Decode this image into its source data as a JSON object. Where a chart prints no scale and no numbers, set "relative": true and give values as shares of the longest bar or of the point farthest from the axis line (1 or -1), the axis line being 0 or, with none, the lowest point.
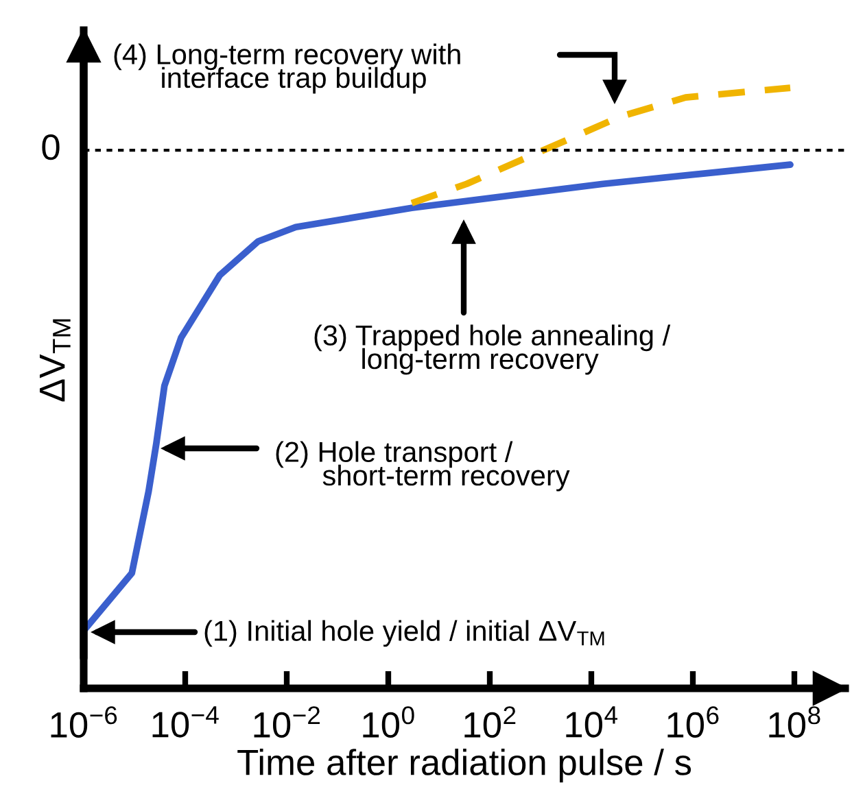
{
  "chart_data": {
    "type": "line",
    "relative": true,
    "log": "x",
    "xlabel": "Time after radiation pulse / s",
    "ylabel": "ΔV$_{TM}$",
    "xlim": [
      1e-06,
      1000000000.0
    ],
    "xticks": [
      {
        "value": 1e-06,
        "label": "10$^{−6}$"
      },
      {
        "value": 0.0001,
        "label": "10$^{−4}$"
      },
      {
        "value": 0.01,
        "label": "10$^{−2}$"
      },
      {
        "value": 1,
        "label": "10$^{0}$"
      },
      {
        "value": 100,
        "label": "10$^{2}$"
      },
      {
        "value": 10000.0,
        "label": "10$^{4}$"
      },
      {
        "value": 1000000.0,
        "label": "10$^{6}$"
      },
      {
        "value": 100000000.0,
        "label": "10$^{8}$"
      }
    ],
    "grid": false,
    "legend": false,
    "marker": "none",
    "ref_lines": [
      {
        "axis": "y",
        "value": 0,
        "label": "0",
        "color": "#000000",
        "line_style": "dotted"
      }
    ],
    "series": [
      {
        "color": "#3a5fcd",
        "line_style": "solid",
        "x": [
          1e-06,
          8.9e-06,
          1.9e-05,
          2.7e-05,
          3.9e-05,
          8.3e-05,
          0.00048,
          0.0027,
          0.015,
          2.9,
          17000.0,
          83000000.0
        ],
        "values": [
          -1,
          -0.88,
          -0.71,
          -0.61,
          -0.49,
          -0.39,
          -0.26,
          -0.19,
          -0.16,
          -0.12,
          -0.07,
          -0.03
        ]
      },
      {
        "color": "#f0b400",
        "line_style": "dashed",
        "x": [
          2.9,
          35,
          420,
          37000.0,
          720000.0,
          83000000.0
        ],
        "values": [
          -0.11,
          -0.07,
          -0.02,
          0.07,
          0.11,
          0.13
        ]
      }
    ],
    "annotations": [
      "(1) Initial hole yield / initial ΔV$_{TM}$",
      "(2) Hole transport /\n      short-term recovery",
      "(3) Trapped hole annealing /\n      long-term recovery",
      "(4) Long-term recovery with\n      interface trap buildup"
    ]
  }
}
